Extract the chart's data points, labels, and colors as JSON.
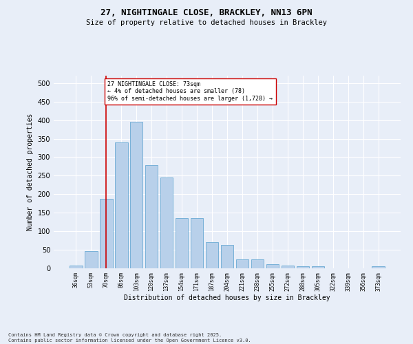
{
  "title_line1": "27, NIGHTINGALE CLOSE, BRACKLEY, NN13 6PN",
  "title_line2": "Size of property relative to detached houses in Brackley",
  "xlabel": "Distribution of detached houses by size in Brackley",
  "ylabel": "Number of detached properties",
  "categories": [
    "36sqm",
    "53sqm",
    "70sqm",
    "86sqm",
    "103sqm",
    "120sqm",
    "137sqm",
    "154sqm",
    "171sqm",
    "187sqm",
    "204sqm",
    "221sqm",
    "238sqm",
    "255sqm",
    "272sqm",
    "288sqm",
    "305sqm",
    "322sqm",
    "339sqm",
    "356sqm",
    "373sqm"
  ],
  "values": [
    8,
    46,
    187,
    340,
    395,
    278,
    245,
    135,
    135,
    70,
    63,
    25,
    25,
    11,
    7,
    5,
    5,
    0,
    0,
    0,
    5
  ],
  "bar_color": "#b8d0ea",
  "bar_edge_color": "#6aaad4",
  "vline_x": 2,
  "vline_color": "#cc0000",
  "annotation_text": "27 NIGHTINGALE CLOSE: 73sqm\n← 4% of detached houses are smaller (78)\n96% of semi-detached houses are larger (1,728) →",
  "annotation_box_color": "#ffffff",
  "annotation_box_edge": "#cc0000",
  "footer_line1": "Contains HM Land Registry data © Crown copyright and database right 2025.",
  "footer_line2": "Contains public sector information licensed under the Open Government Licence v3.0.",
  "background_color": "#e8eef8",
  "grid_color": "#ffffff",
  "ylim": [
    0,
    520
  ],
  "yticks": [
    0,
    50,
    100,
    150,
    200,
    250,
    300,
    350,
    400,
    450,
    500
  ]
}
